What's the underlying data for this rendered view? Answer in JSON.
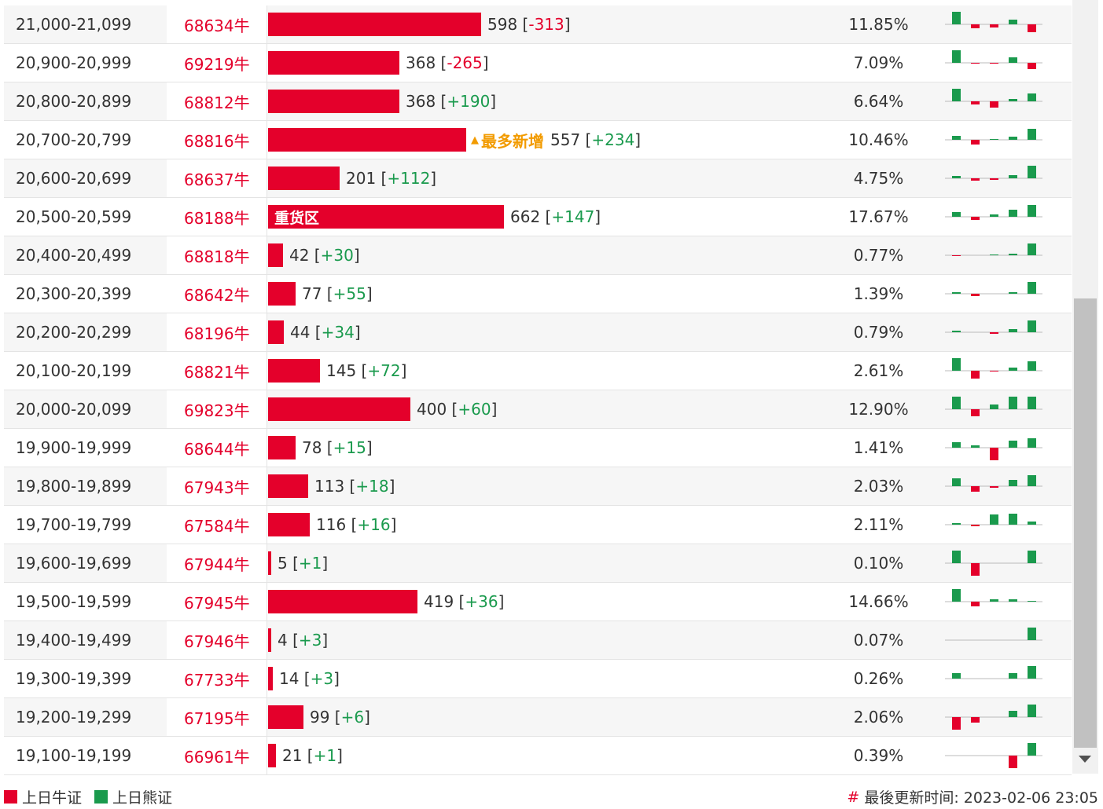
{
  "colors": {
    "bull": "#e4002b",
    "bear": "#1a9a4d",
    "badge": "#f29b00"
  },
  "max_value": 662,
  "rows": [
    {
      "range": "21,000-21,099",
      "code": "68634牛",
      "value": 598,
      "value_text": "598",
      "change": "-313",
      "dir": "neg",
      "pct": "11.85%",
      "spark": [
        16,
        -5,
        -4,
        6,
        -10
      ]
    },
    {
      "range": "20,900-20,999",
      "code": "69219牛",
      "value": 368,
      "value_text": "368",
      "change": "-265",
      "dir": "neg",
      "pct": "7.09%",
      "spark": [
        16,
        -1,
        -1,
        7,
        -8
      ]
    },
    {
      "range": "20,800-20,899",
      "code": "68812牛",
      "value": 368,
      "value_text": "368",
      "change": "+190",
      "dir": "pos",
      "pct": "6.64%",
      "spark": [
        16,
        -4,
        -8,
        3,
        10
      ]
    },
    {
      "range": "20,700-20,799",
      "code": "68816牛",
      "value": 557,
      "value_text": "557",
      "change": "+234",
      "dir": "pos",
      "pct": "10.46%",
      "badge": "最多新增",
      "spark": [
        5,
        -6,
        1,
        4,
        14
      ]
    },
    {
      "range": "20,600-20,699",
      "code": "68637牛",
      "value": 201,
      "value_text": "201",
      "change": "+112",
      "dir": "pos",
      "pct": "4.75%",
      "spark": [
        3,
        -3,
        -2,
        4,
        16
      ]
    },
    {
      "range": "20,500-20,599",
      "code": "68188牛",
      "value": 662,
      "value_text": "662",
      "change": "+147",
      "dir": "pos",
      "pct": "17.67%",
      "label": "重货区",
      "spark": [
        6,
        -4,
        3,
        9,
        15
      ]
    },
    {
      "range": "20,400-20,499",
      "code": "68818牛",
      "value": 42,
      "value_text": "42",
      "change": "+30",
      "dir": "pos",
      "pct": "0.77%",
      "spark": [
        -1,
        0,
        1,
        2,
        15
      ]
    },
    {
      "range": "20,300-20,399",
      "code": "68642牛",
      "value": 77,
      "value_text": "77",
      "change": "+55",
      "dir": "pos",
      "pct": "1.39%",
      "spark": [
        2,
        -3,
        0,
        2,
        15
      ]
    },
    {
      "range": "20,200-20,299",
      "code": "68196牛",
      "value": 44,
      "value_text": "44",
      "change": "+34",
      "dir": "pos",
      "pct": "0.79%",
      "spark": [
        2,
        0,
        -2,
        4,
        15
      ]
    },
    {
      "range": "20,100-20,199",
      "code": "68821牛",
      "value": 145,
      "value_text": "145",
      "change": "+72",
      "dir": "pos",
      "pct": "2.61%",
      "spark": [
        16,
        -10,
        -1,
        4,
        12
      ]
    },
    {
      "range": "20,000-20,099",
      "code": "69823牛",
      "value": 400,
      "value_text": "400",
      "change": "+60",
      "dir": "pos",
      "pct": "12.90%",
      "spark": [
        16,
        -9,
        6,
        16,
        16
      ]
    },
    {
      "range": "19,900-19,999",
      "code": "68644牛",
      "value": 78,
      "value_text": "78",
      "change": "+15",
      "dir": "pos",
      "pct": "1.41%",
      "spark": [
        7,
        3,
        -16,
        9,
        12
      ]
    },
    {
      "range": "19,800-19,899",
      "code": "67943牛",
      "value": 113,
      "value_text": "113",
      "change": "+18",
      "dir": "pos",
      "pct": "2.03%",
      "spark": [
        10,
        -7,
        -2,
        8,
        14
      ]
    },
    {
      "range": "19,700-19,799",
      "code": "67584牛",
      "value": 116,
      "value_text": "116",
      "change": "+16",
      "dir": "pos",
      "pct": "2.11%",
      "spark": [
        2,
        -2,
        13,
        14,
        4
      ]
    },
    {
      "range": "19,600-19,699",
      "code": "67944牛",
      "value": 5,
      "value_text": "5",
      "change": "+1",
      "dir": "pos",
      "pct": "0.10%",
      "spark": [
        16,
        -16,
        0,
        0,
        16
      ]
    },
    {
      "range": "19,500-19,599",
      "code": "67945牛",
      "value": 419,
      "value_text": "419",
      "change": "+36",
      "dir": "pos",
      "pct": "14.66%",
      "spark": [
        16,
        -6,
        3,
        3,
        1
      ]
    },
    {
      "range": "19,400-19,499",
      "code": "67946牛",
      "value": 4,
      "value_text": "4",
      "change": "+3",
      "dir": "pos",
      "pct": "0.07%",
      "spark": [
        0,
        0,
        0,
        0,
        16
      ]
    },
    {
      "range": "19,300-19,399",
      "code": "67733牛",
      "value": 14,
      "value_text": "14",
      "change": "+3",
      "dir": "pos",
      "pct": "0.26%",
      "spark": [
        7,
        0,
        0,
        7,
        16
      ]
    },
    {
      "range": "19,200-19,299",
      "code": "67195牛",
      "value": 99,
      "value_text": "99",
      "change": "+6",
      "dir": "pos",
      "pct": "2.06%",
      "spark": [
        -16,
        -7,
        0,
        8,
        16
      ]
    },
    {
      "range": "19,100-19,199",
      "code": "66961牛",
      "value": 21,
      "value_text": "21",
      "change": "+1",
      "dir": "pos",
      "pct": "0.39%",
      "spark": [
        0,
        0,
        0,
        -16,
        16
      ]
    }
  ],
  "legend": {
    "bull_label": "上日牛证",
    "bear_label": "上日熊证"
  },
  "footer": {
    "hash": "#",
    "updated": "最後更新时间: 2023-02-06 23:05"
  }
}
